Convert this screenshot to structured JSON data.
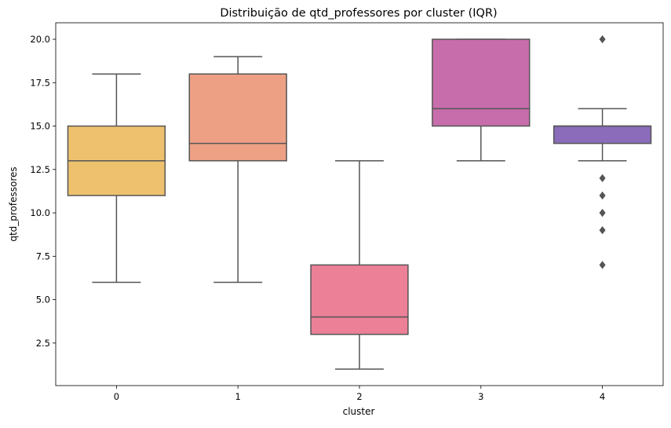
{
  "chart_data": {
    "type": "box",
    "title": "Distribuição de qtd_professores por cluster (IQR)",
    "xlabel": "cluster",
    "ylabel": "qtd_professores",
    "categories": [
      "0",
      "1",
      "2",
      "3",
      "4"
    ],
    "ylim": [
      0.05,
      20.95
    ],
    "yticks": [
      2.5,
      5.0,
      7.5,
      10.0,
      12.5,
      15.0,
      17.5,
      20.0
    ],
    "ytick_labels": [
      "2.5",
      "5.0",
      "7.5",
      "10.0",
      "12.5",
      "15.0",
      "17.5",
      "20.0"
    ],
    "grid": false,
    "boxes": [
      {
        "category": "0",
        "whisker_low": 6,
        "q1": 11,
        "median": 13,
        "q3": 15,
        "whisker_high": 18,
        "outliers": [],
        "color": "#edc16e"
      },
      {
        "category": "1",
        "whisker_low": 6,
        "q1": 13,
        "median": 14,
        "q3": 18,
        "whisker_high": 19,
        "outliers": [],
        "color": "#eda084"
      },
      {
        "category": "2",
        "whisker_low": 1,
        "q1": 3,
        "median": 4,
        "q3": 7,
        "whisker_high": 13,
        "outliers": [],
        "color": "#eb8097"
      },
      {
        "category": "3",
        "whisker_low": 13,
        "q1": 15,
        "median": 16,
        "q3": 20,
        "whisker_high": 20,
        "outliers": [],
        "color": "#c76dab"
      },
      {
        "category": "4",
        "whisker_low": 13,
        "q1": 14,
        "median": 15,
        "q3": 15,
        "whisker_high": 16,
        "outliers": [
          20,
          12,
          11,
          10,
          9,
          7
        ],
        "color": "#8b6cbb"
      }
    ],
    "line_color": "#555555",
    "outlier_color": "#555555"
  }
}
